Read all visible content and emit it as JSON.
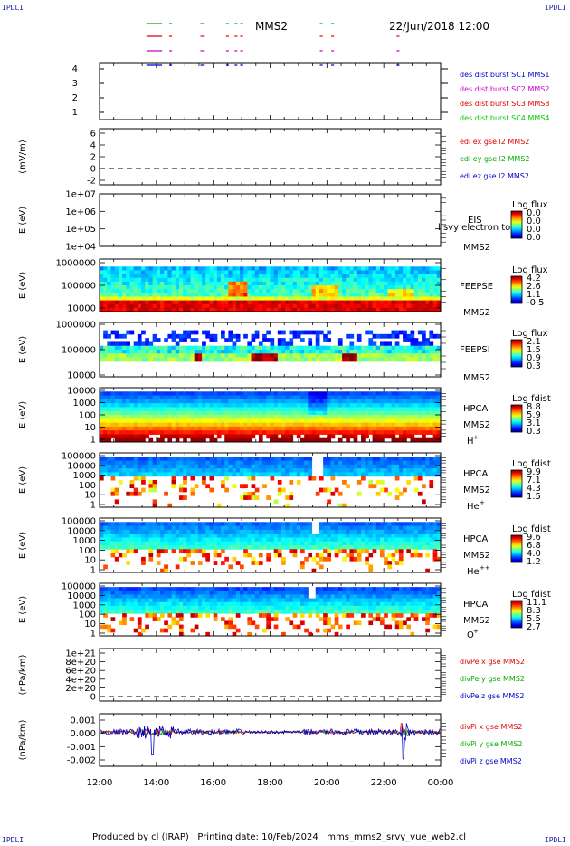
{
  "header": {
    "corner": "IPDLI",
    "title": "MMS2",
    "date": "22/Jun/2018 12:00"
  },
  "footer": {
    "produced_by": "Produced by cl (IRAP)",
    "printing_date": "Printing date: 10/Feb/2024",
    "filename": "mms_mms2_srvy_vue_web2.cl"
  },
  "x_axis": {
    "ticks": [
      "12:00",
      "14:00",
      "16:00",
      "18:00",
      "20:00",
      "22:00",
      "00:00"
    ]
  },
  "chart_data": [
    {
      "type": "line",
      "panel": "burst",
      "yticks": [
        "1",
        "2",
        "3",
        "4"
      ],
      "ylim": [
        0.5,
        4.5
      ],
      "series": [
        {
          "name": "des dist burst SC1 MMS1",
          "color": "#00aa00",
          "level": 4
        },
        {
          "name": "des dist burst SC2 MMS2",
          "color": "#dd0000",
          "level": 3
        },
        {
          "name": "des dist burst SC3 MMS3",
          "color": "#cc00cc",
          "level": 2
        },
        {
          "name": "des dist burst SC4 MMS4",
          "color": "#0000cc",
          "level": 1
        }
      ],
      "legend_colors": [
        "#0000cc",
        "#cc00cc",
        "#dd0000",
        "#00cc00"
      ],
      "intervals_hours": [
        [
          1.6,
          2.2
        ],
        [
          2.45,
          2.55
        ],
        [
          3.55,
          3.7
        ],
        [
          4.45,
          4.55
        ],
        [
          4.75,
          4.85
        ],
        [
          4.95,
          5.05
        ],
        [
          7.75,
          7.85
        ],
        [
          8.15,
          8.25
        ],
        [
          10.45,
          10.55
        ]
      ]
    },
    {
      "type": "line",
      "panel": "edi",
      "ylabel": "(mV/m)",
      "yticks": [
        "6",
        "4",
        "2",
        "0",
        "-2"
      ],
      "ylim": [
        -3,
        7
      ],
      "dashed_zero": true,
      "series": [
        {
          "name": "edi ex gse l2 MMS2",
          "color": "#dd0000"
        },
        {
          "name": "edi ey gse l2 MMS2",
          "color": "#00aa00"
        },
        {
          "name": "edi ez gse l2 MMS2",
          "color": "#0000cc"
        }
      ]
    },
    {
      "type": "heatmap",
      "panel": "eis",
      "ylabel": "E (eV)",
      "yticks": [
        "1e+07",
        "1e+06",
        "1e+05",
        "1e+04"
      ],
      "labels": [
        "EIS",
        "MMS2"
      ],
      "overlay_text": "l svy electron to",
      "colorbar": {
        "title": "Log flux",
        "ticks": [
          "0.0",
          "0.0",
          "0.0",
          "0.0"
        ]
      }
    },
    {
      "type": "heatmap",
      "panel": "feepse",
      "ylabel": "E (eV)",
      "yticks": [
        "1000000",
        "100000",
        "10000"
      ],
      "labels": [
        "FEEPSE",
        "MMS2"
      ],
      "colorbar": {
        "title": "Log flux",
        "ticks": [
          "4.2",
          "2.6",
          "1.1",
          "-0.5"
        ]
      }
    },
    {
      "type": "heatmap",
      "panel": "feepsi",
      "ylabel": "E (eV)",
      "yticks": [
        "1000000",
        "100000",
        "10000"
      ],
      "labels": [
        "FEEPSI",
        "MMS2"
      ],
      "colorbar": {
        "title": "Log flux",
        "ticks": [
          "2.1",
          "1.5",
          "0.9",
          "0.3"
        ]
      }
    },
    {
      "type": "heatmap",
      "panel": "hpca_h",
      "ylabel": "E (eV)",
      "yticks": [
        "10000",
        "1000",
        "100",
        "10",
        "1"
      ],
      "labels": [
        "HPCA",
        "MMS2"
      ],
      "species": "H",
      "species_sup": "+",
      "colorbar": {
        "title": "Log fdist",
        "ticks": [
          "8.8",
          "5.9",
          "3.1",
          "0.3"
        ]
      }
    },
    {
      "type": "heatmap",
      "panel": "hpca_he",
      "ylabel": "E (eV)",
      "yticks": [
        "100000",
        "10000",
        "1000",
        "100",
        "10",
        "1"
      ],
      "labels": [
        "HPCA",
        "MMS2"
      ],
      "species": "He",
      "species_sup": "+",
      "colorbar": {
        "title": "Log fdist",
        "ticks": [
          "9.9",
          "7.1",
          "4.3",
          "1.5"
        ]
      }
    },
    {
      "type": "heatmap",
      "panel": "hpca_hepp",
      "ylabel": "E (eV)",
      "yticks": [
        "100000",
        "10000",
        "1000",
        "100",
        "10",
        "1"
      ],
      "labels": [
        "HPCA",
        "MMS2"
      ],
      "species": "He",
      "species_sup": "++",
      "colorbar": {
        "title": "Log fdist",
        "ticks": [
          "9.6",
          "6.8",
          "4.0",
          "1.2"
        ]
      }
    },
    {
      "type": "heatmap",
      "panel": "hpca_o",
      "ylabel": "E (eV)",
      "yticks": [
        "100000",
        "10000",
        "1000",
        "100",
        "10",
        "1"
      ],
      "labels": [
        "HPCA",
        "MMS2"
      ],
      "species": "O",
      "species_sup": "+",
      "colorbar": {
        "title": "Log fdist",
        "ticks": [
          "11.1",
          "8.3",
          "5.5",
          "2.7"
        ]
      }
    },
    {
      "type": "line",
      "panel": "divpe",
      "ylabel": "(nPa/km)",
      "yticks": [
        "1e+21",
        "8e+20",
        "6e+20",
        "4e+20",
        "2e+20",
        "0"
      ],
      "ylim": [
        -1e+20,
        1.05e+21
      ],
      "dashed_zero": true,
      "series": [
        {
          "name": "divPe x gse MMS2",
          "color": "#dd0000"
        },
        {
          "name": "divPe y gse MMS2",
          "color": "#00aa00"
        },
        {
          "name": "divPe z gse MMS2",
          "color": "#0000cc"
        }
      ]
    },
    {
      "type": "line",
      "panel": "divpi",
      "ylabel": "(nPa/km)",
      "yticks": [
        "0.001",
        "0.000",
        "-0.001",
        "-0.002"
      ],
      "ylim": [
        -0.0028,
        0.0015
      ],
      "series": [
        {
          "name": "divPi x gse MMS2",
          "color": "#dd0000"
        },
        {
          "name": "divPi y gse MMS2",
          "color": "#00aa00"
        },
        {
          "name": "divPi z gse MMS2",
          "color": "#0000cc"
        }
      ]
    }
  ]
}
